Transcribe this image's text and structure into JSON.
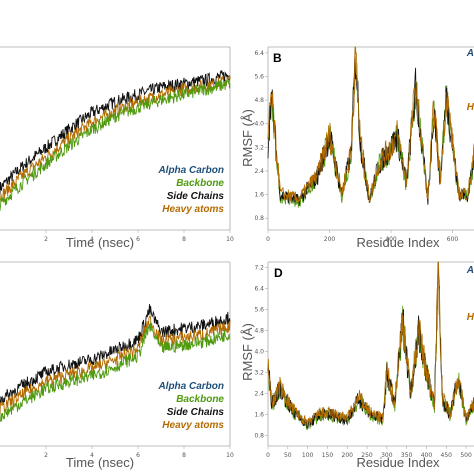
{
  "colors": {
    "alpha_carbon": "#1f4e79",
    "backbone": "#4f9a0f",
    "side_chains": "#111111",
    "heavy_atoms": "#b36b00",
    "axis": "#aaaaaa"
  },
  "chart_data": [
    {
      "type": "line",
      "panel_label": "",
      "xlabel": "Time (nsec)",
      "ylabel": "",
      "xlim": [
        0,
        10
      ],
      "x_ticks": [
        "2",
        "4",
        "6",
        "8",
        "10"
      ],
      "legend": {
        "placement": "bottom-right",
        "entries": [
          "Alpha Carbon",
          "Backbone",
          "Side Chains",
          "Heavy atoms"
        ]
      },
      "series": [
        {
          "name": "Side Chains",
          "x": [
            0,
            1,
            2,
            3,
            4,
            5,
            6,
            7,
            8,
            9,
            10
          ],
          "y": [
            0.23,
            0.35,
            0.45,
            0.55,
            0.64,
            0.7,
            0.74,
            0.78,
            0.8,
            0.82,
            0.85
          ]
        },
        {
          "name": "Heavy atoms",
          "x": [
            0,
            1,
            2,
            3,
            4,
            5,
            6,
            7,
            8,
            9,
            10
          ],
          "y": [
            0.18,
            0.3,
            0.4,
            0.5,
            0.59,
            0.65,
            0.7,
            0.74,
            0.77,
            0.79,
            0.82
          ]
        },
        {
          "name": "Backbone",
          "x": [
            0,
            1,
            2,
            3,
            4,
            5,
            6,
            7,
            8,
            9,
            10
          ],
          "y": [
            0.14,
            0.26,
            0.36,
            0.46,
            0.55,
            0.62,
            0.67,
            0.71,
            0.74,
            0.77,
            0.8
          ]
        }
      ]
    },
    {
      "type": "line",
      "panel_label": "B",
      "xlabel": "Residue Index",
      "ylabel": "RMSF (Å)",
      "xlim": [
        0,
        800
      ],
      "ylim": [
        0.4,
        6.6
      ],
      "x_ticks": [
        "0",
        "200",
        "400",
        "600"
      ],
      "y_ticks": [
        "0.8",
        "1.6",
        "2.4",
        "3.2",
        "4.0",
        "4.8",
        "5.6",
        "6.4"
      ],
      "legend": {
        "placement": "top-right",
        "entries": [
          "A",
          "H"
        ]
      },
      "series": [
        {
          "name": "Heavy atoms",
          "x": [
            0,
            10,
            40,
            100,
            160,
            200,
            240,
            270,
            285,
            300,
            330,
            360,
            400,
            420,
            450,
            480,
            520,
            540,
            560,
            580,
            620,
            650,
            680,
            720,
            760,
            800
          ],
          "y": [
            3.2,
            5.0,
            1.6,
            1.4,
            2.2,
            3.6,
            1.6,
            3.0,
            6.4,
            3.4,
            1.4,
            2.6,
            3.2,
            3.6,
            2.0,
            5.2,
            1.4,
            4.6,
            2.0,
            5.0,
            1.6,
            1.6,
            3.5,
            1.2,
            1.2,
            1.6
          ]
        }
      ]
    },
    {
      "type": "line",
      "panel_label": "",
      "xlabel": "Time (nsec)",
      "ylabel": "",
      "xlim": [
        0,
        10
      ],
      "x_ticks": [
        "2",
        "4",
        "6",
        "8",
        "10"
      ],
      "legend": {
        "placement": "bottom-right",
        "entries": [
          "Alpha Carbon",
          "Backbone",
          "Side Chains",
          "Heavy atoms"
        ]
      },
      "series": [
        {
          "name": "Side Chains",
          "x": [
            0,
            1,
            2,
            3,
            4,
            5,
            6,
            6.5,
            7,
            8,
            9,
            10
          ],
          "y": [
            0.25,
            0.33,
            0.4,
            0.44,
            0.47,
            0.52,
            0.58,
            0.74,
            0.62,
            0.64,
            0.66,
            0.7
          ]
        },
        {
          "name": "Heavy atoms",
          "x": [
            0,
            1,
            2,
            3,
            4,
            5,
            6,
            6.5,
            7,
            8,
            9,
            10
          ],
          "y": [
            0.2,
            0.28,
            0.35,
            0.39,
            0.42,
            0.47,
            0.53,
            0.69,
            0.57,
            0.59,
            0.61,
            0.65
          ]
        },
        {
          "name": "Backbone",
          "x": [
            0,
            1,
            2,
            3,
            4,
            5,
            6,
            6.5,
            7,
            8,
            9,
            10
          ],
          "y": [
            0.16,
            0.24,
            0.31,
            0.35,
            0.38,
            0.43,
            0.49,
            0.65,
            0.53,
            0.55,
            0.57,
            0.61
          ]
        }
      ]
    },
    {
      "type": "line",
      "panel_label": "D",
      "xlabel": "Residue Index",
      "ylabel": "RMSF (Å)",
      "xlim": [
        0,
        520
      ],
      "ylim": [
        0.4,
        7.4
      ],
      "x_ticks": [
        "0",
        "50",
        "100",
        "150",
        "200",
        "250",
        "300",
        "350",
        "400",
        "450",
        "500"
      ],
      "y_ticks": [
        "0.8",
        "1.6",
        "2.4",
        "3.2",
        "4.0",
        "4.8",
        "5.6",
        "6.4",
        "7.2"
      ],
      "legend": {
        "placement": "top-right",
        "entries": [
          "A",
          "H"
        ]
      },
      "series": [
        {
          "name": "Heavy atoms",
          "x": [
            0,
            10,
            30,
            60,
            100,
            130,
            160,
            200,
            230,
            260,
            290,
            300,
            320,
            340,
            360,
            380,
            400,
            420,
            430,
            440,
            460,
            480,
            500,
            520
          ],
          "y": [
            3.4,
            2.0,
            2.6,
            1.8,
            1.2,
            1.6,
            1.6,
            1.4,
            2.2,
            1.6,
            1.4,
            3.2,
            2.0,
            5.2,
            2.4,
            4.8,
            3.2,
            2.0,
            7.2,
            2.2,
            1.6,
            3.0,
            1.4,
            2.0
          ]
        }
      ]
    }
  ]
}
